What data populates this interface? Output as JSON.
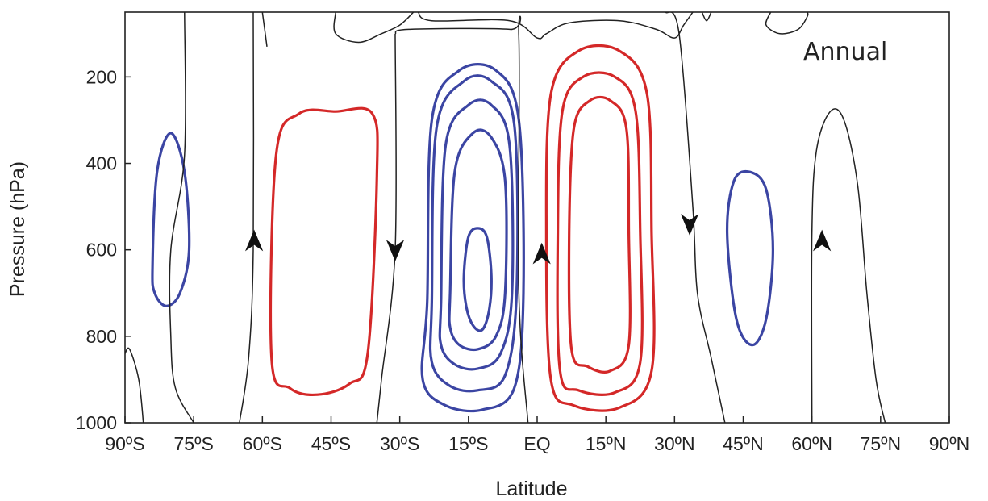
{
  "chart_data": {
    "type": "contour",
    "panel_label": "Annual",
    "xlabel": "Latitude",
    "ylabel": "Pressure (hPa)",
    "x_ticks": [
      "90ºS",
      "75ºS",
      "60ºS",
      "45ºS",
      "30ºS",
      "15ºS",
      "EQ",
      "15ºN",
      "30ºN",
      "45ºN",
      "60ºN",
      "75ºN",
      "90ºN"
    ],
    "x_tick_values": [
      -90,
      -75,
      -60,
      -45,
      -30,
      -15,
      0,
      15,
      30,
      45,
      60,
      75,
      90
    ],
    "y_ticks": [
      "200",
      "400",
      "600",
      "800",
      "1000"
    ],
    "y_tick_values": [
      200,
      400,
      600,
      800,
      1000
    ],
    "xlim": [
      -90,
      90
    ],
    "ylim": [
      1000,
      50
    ],
    "grid": false,
    "colors": {
      "positive": "#d42828",
      "negative": "#3b45a3",
      "zero": "#222222"
    },
    "contours": [
      {
        "sign": "negative",
        "points": [
          [
            -84,
            640
          ],
          [
            -83,
            420
          ],
          [
            -80,
            330
          ],
          [
            -77,
            420
          ],
          [
            -76,
            600
          ],
          [
            -78,
            700
          ],
          [
            -81,
            730
          ],
          [
            -83.5,
            700
          ]
        ]
      },
      {
        "sign": "positive",
        "points": [
          [
            -58,
            850
          ],
          [
            -57,
            380
          ],
          [
            -52,
            285
          ],
          [
            -44,
            280
          ],
          [
            -36,
            285
          ],
          [
            -35,
            430
          ],
          [
            -37,
            840
          ],
          [
            -41,
            910
          ],
          [
            -48,
            935
          ],
          [
            -54,
            920
          ]
        ]
      },
      {
        "sign": "negative",
        "points": [
          [
            -24,
            720
          ],
          [
            -23,
            300
          ],
          [
            -17,
            185
          ],
          [
            -9,
            185
          ],
          [
            -4,
            300
          ],
          [
            -3,
            700
          ],
          [
            -5,
            920
          ],
          [
            -12,
            970
          ],
          [
            -20,
            960
          ],
          [
            -25,
            900
          ]
        ]
      },
      {
        "sign": "negative",
        "points": [
          [
            -23,
            720
          ],
          [
            -22,
            320
          ],
          [
            -16,
            210
          ],
          [
            -10,
            210
          ],
          [
            -5,
            310
          ],
          [
            -4.5,
            700
          ],
          [
            -7,
            890
          ],
          [
            -13,
            925
          ],
          [
            -19,
            915
          ],
          [
            -23,
            860
          ]
        ]
      },
      {
        "sign": "negative",
        "points": [
          [
            -21,
            720
          ],
          [
            -20,
            360
          ],
          [
            -15,
            265
          ],
          [
            -10,
            265
          ],
          [
            -6,
            360
          ],
          [
            -5.5,
            700
          ],
          [
            -8,
            840
          ],
          [
            -13,
            875
          ],
          [
            -18,
            865
          ],
          [
            -21,
            820
          ]
        ]
      },
      {
        "sign": "negative",
        "points": [
          [
            -19,
            700
          ],
          [
            -18,
            420
          ],
          [
            -14,
            330
          ],
          [
            -10,
            340
          ],
          [
            -7,
            440
          ],
          [
            -7,
            700
          ],
          [
            -9,
            800
          ],
          [
            -13,
            830
          ],
          [
            -17,
            820
          ],
          [
            -19,
            780
          ]
        ]
      },
      {
        "sign": "negative",
        "points": [
          [
            -16,
            660
          ],
          [
            -15,
            570
          ],
          [
            -13,
            550
          ],
          [
            -11,
            570
          ],
          [
            -10,
            660
          ],
          [
            -10.5,
            740
          ],
          [
            -12,
            785
          ],
          [
            -14,
            775
          ],
          [
            -15.5,
            730
          ]
        ]
      },
      {
        "sign": "positive",
        "points": [
          [
            2,
            560
          ],
          [
            3,
            240
          ],
          [
            9,
            140
          ],
          [
            18,
            140
          ],
          [
            24,
            240
          ],
          [
            25,
            560
          ],
          [
            25,
            880
          ],
          [
            18,
            965
          ],
          [
            8,
            960
          ],
          [
            3,
            900
          ]
        ]
      },
      {
        "sign": "positive",
        "points": [
          [
            4.5,
            560
          ],
          [
            5.5,
            280
          ],
          [
            10,
            200
          ],
          [
            17,
            200
          ],
          [
            21.5,
            280
          ],
          [
            22.5,
            560
          ],
          [
            22.5,
            860
          ],
          [
            17,
            930
          ],
          [
            9,
            925
          ],
          [
            5,
            880
          ]
        ]
      },
      {
        "sign": "positive",
        "points": [
          [
            7,
            560
          ],
          [
            8,
            320
          ],
          [
            11.5,
            255
          ],
          [
            16,
            255
          ],
          [
            19.5,
            320
          ],
          [
            20,
            560
          ],
          [
            20,
            820
          ],
          [
            16,
            880
          ],
          [
            11,
            870
          ],
          [
            7.5,
            830
          ]
        ]
      },
      {
        "sign": "negative",
        "points": [
          [
            41.5,
            560
          ],
          [
            43,
            440
          ],
          [
            46.5,
            420
          ],
          [
            50,
            460
          ],
          [
            51.5,
            600
          ],
          [
            50,
            760
          ],
          [
            47,
            820
          ],
          [
            43.5,
            760
          ]
        ]
      }
    ],
    "zero_lines": [
      {
        "points": [
          [
            -90,
            840
          ],
          [
            -89,
            830
          ],
          [
            -87,
            900
          ],
          [
            -86,
            1000
          ]
        ]
      },
      {
        "points": [
          [
            -77,
            50
          ],
          [
            -77,
            380
          ],
          [
            -80,
            600
          ],
          [
            -80,
            800
          ],
          [
            -79,
            920
          ],
          [
            -75,
            1000
          ]
        ]
      },
      {
        "points": [
          [
            -62,
            50
          ],
          [
            -62,
            600
          ],
          [
            -63,
            850
          ],
          [
            -65,
            1000
          ]
        ]
      },
      {
        "points": [
          [
            -60,
            50
          ],
          [
            -59,
            130
          ]
        ]
      },
      {
        "points": [
          [
            -31,
            100
          ],
          [
            -31,
            600
          ],
          [
            -34,
            900
          ],
          [
            -35,
            1000
          ]
        ]
      },
      {
        "points": [
          [
            -31,
            100
          ],
          [
            -28,
            90
          ],
          [
            -6,
            90
          ],
          [
            -4,
            110
          ],
          [
            -4,
            700
          ],
          [
            -2,
            1000
          ]
        ]
      },
      {
        "points": [
          [
            -44,
            50
          ],
          [
            -44,
            100
          ],
          [
            -39,
            120
          ],
          [
            -34,
            100
          ],
          [
            -30,
            80
          ],
          [
            -27,
            50
          ]
        ]
      },
      {
        "points": [
          [
            -26,
            50
          ],
          [
            -23,
            70
          ],
          [
            -6,
            70
          ],
          [
            0,
            110
          ],
          [
            2,
            100
          ],
          [
            7,
            75
          ],
          [
            18,
            70
          ],
          [
            26,
            90
          ],
          [
            30,
            110
          ],
          [
            32,
            80
          ],
          [
            34,
            50
          ]
        ]
      },
      {
        "points": [
          [
            28,
            50
          ],
          [
            31,
            100
          ],
          [
            34,
            500
          ],
          [
            35,
            700
          ],
          [
            38,
            850
          ],
          [
            41,
            1000
          ]
        ]
      },
      {
        "points": [
          [
            36,
            50
          ],
          [
            37,
            70
          ],
          [
            38,
            50
          ]
        ]
      },
      {
        "points": [
          [
            51,
            50
          ],
          [
            50,
            80
          ],
          [
            53,
            100
          ],
          [
            57,
            90
          ],
          [
            59,
            60
          ],
          [
            59,
            50
          ]
        ]
      },
      {
        "points": [
          [
            60,
            1000
          ],
          [
            60,
            560
          ],
          [
            61,
            370
          ],
          [
            64,
            280
          ],
          [
            67,
            300
          ],
          [
            70,
            450
          ],
          [
            72,
            700
          ],
          [
            74,
            900
          ],
          [
            76,
            1000
          ]
        ]
      }
    ],
    "arrows": [
      {
        "lat": -61.8,
        "p": 580,
        "direction": "up"
      },
      {
        "lat": -31.0,
        "p": 600,
        "direction": "down"
      },
      {
        "lat": 1.0,
        "p": 610,
        "direction": "up"
      },
      {
        "lat": 33.3,
        "p": 540,
        "direction": "down"
      },
      {
        "lat": 62.2,
        "p": 580,
        "direction": "up"
      }
    ]
  }
}
